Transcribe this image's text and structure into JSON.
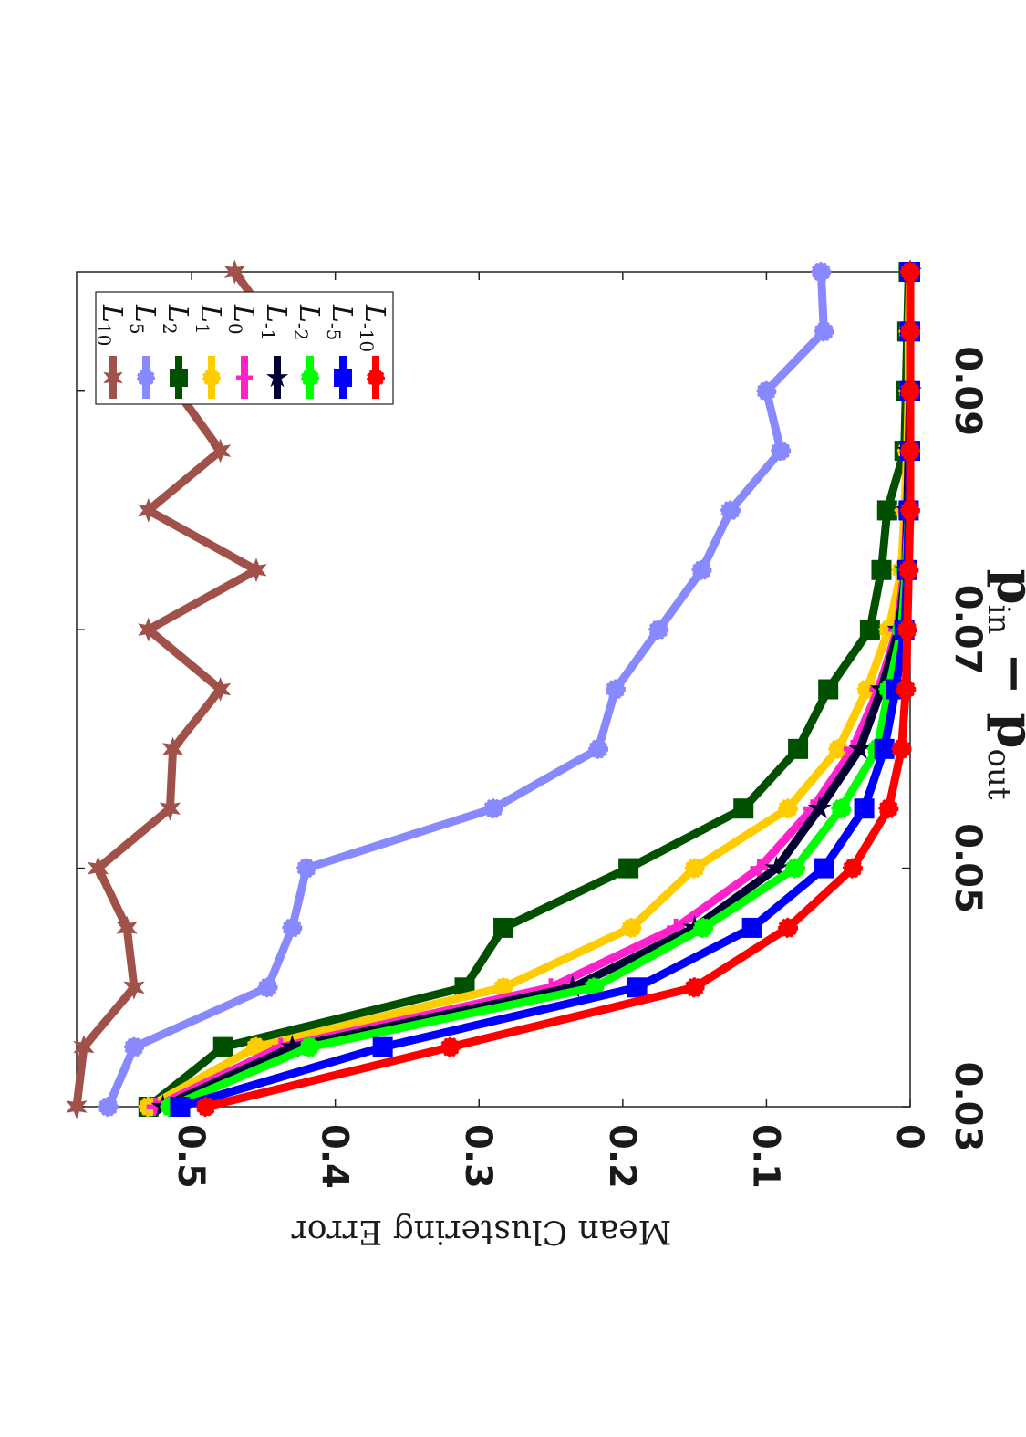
{
  "chart_data": {
    "type": "line",
    "title": "",
    "xlabel": "p_in − p_out",
    "xlabel_main": "p",
    "xlabel_sub1": "in",
    "xlabel_minus": " − p",
    "xlabel_sub2": "out",
    "ylabel": "Mean Clustering Error",
    "xlim": [
      0.03,
      0.1
    ],
    "ylim": [
      0,
      0.58
    ],
    "xticks": [
      0.03,
      0.05,
      0.07,
      0.09
    ],
    "xtick_labels": [
      "0.03",
      "0.05",
      "0.07",
      "0.09"
    ],
    "yticks": [
      0,
      0.1,
      0.2,
      0.3,
      0.4,
      0.5
    ],
    "ytick_labels": [
      "0",
      "0.1",
      "0.2",
      "0.3",
      "0.4",
      "0.5"
    ],
    "grid": false,
    "legend_position": "top-right",
    "orientation": "rotated 90 degrees clockwise",
    "x": [
      0.03,
      0.035,
      0.04,
      0.045,
      0.05,
      0.055,
      0.06,
      0.065,
      0.07,
      0.075,
      0.08,
      0.085,
      0.09,
      0.095,
      0.1
    ],
    "series": [
      {
        "name": "L",
        "sub": "10",
        "color": "#a0524a",
        "marker": "hexagram",
        "values": [
          0.58,
          0.575,
          0.54,
          0.545,
          0.565,
          0.515,
          0.513,
          0.48,
          0.53,
          0.455,
          0.53,
          0.48,
          0.51,
          0.44,
          0.47
        ]
      },
      {
        "name": "L",
        "sub": "5",
        "color": "#8888ff",
        "marker": "circle",
        "values": [
          0.558,
          0.54,
          0.447,
          0.43,
          0.42,
          0.29,
          0.217,
          0.205,
          0.175,
          0.145,
          0.125,
          0.09,
          0.1,
          0.06,
          0.062
        ]
      },
      {
        "name": "L",
        "sub": "2",
        "color": "#005000",
        "marker": "square",
        "values": [
          0.53,
          0.478,
          0.31,
          0.283,
          0.196,
          0.116,
          0.078,
          0.057,
          0.028,
          0.02,
          0.016,
          0.004,
          0.003,
          0.002,
          0.001
        ]
      },
      {
        "name": "L",
        "sub": "1",
        "color": "#ffcc00",
        "marker": "circle",
        "values": [
          0.53,
          0.455,
          0.283,
          0.194,
          0.15,
          0.085,
          0.05,
          0.03,
          0.015,
          0.006,
          0.004,
          0.002,
          0.001,
          0.001,
          0.0
        ]
      },
      {
        "name": "L",
        "sub": "0",
        "color": "#ff22cc",
        "marker": "plus",
        "values": [
          0.525,
          0.438,
          0.25,
          0.163,
          0.105,
          0.068,
          0.04,
          0.022,
          0.009,
          0.004,
          0.002,
          0.001,
          0.0,
          0.0,
          0.0
        ]
      },
      {
        "name": "L",
        "sub": "-1",
        "color": "#000033",
        "marker": "star",
        "values": [
          0.52,
          0.43,
          0.235,
          0.15,
          0.093,
          0.063,
          0.035,
          0.02,
          0.008,
          0.003,
          0.002,
          0.001,
          0.0,
          0.0,
          0.0
        ]
      },
      {
        "name": "L",
        "sub": "-2",
        "color": "#00ff00",
        "marker": "circle",
        "values": [
          0.515,
          0.418,
          0.22,
          0.144,
          0.08,
          0.048,
          0.023,
          0.015,
          0.006,
          0.003,
          0.001,
          0.0,
          0.0,
          0.0,
          0.0
        ]
      },
      {
        "name": "L",
        "sub": "-5",
        "color": "#0000ff",
        "marker": "square",
        "values": [
          0.508,
          0.367,
          0.19,
          0.11,
          0.06,
          0.032,
          0.018,
          0.01,
          0.004,
          0.002,
          0.001,
          0.0,
          0.0,
          0.0,
          0.0
        ]
      },
      {
        "name": "L",
        "sub": "-10",
        "color": "#ff0000",
        "marker": "circle",
        "values": [
          0.49,
          0.32,
          0.15,
          0.085,
          0.04,
          0.015,
          0.006,
          0.003,
          0.002,
          0.001,
          0.0,
          0.0,
          0.0,
          0.0,
          0.0
        ]
      }
    ]
  }
}
